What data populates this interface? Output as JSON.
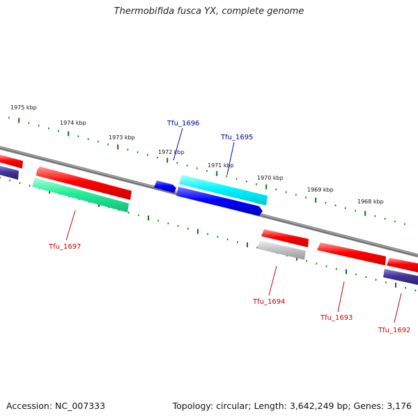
{
  "title": "Thermobifida fusca YX, complete genome",
  "footer": {
    "accession": "Accession: NC_007333",
    "summary": "Topology: circular; Length: 3,642,249 bp; Genes: 3,176"
  },
  "scale": {
    "unit": "kbp",
    "labels": [
      "1975 kbp",
      "1974 kbp",
      "1973 kbp",
      "1972 kbp",
      "1971 kbp",
      "1970 kbp",
      "1969 kbp",
      "1968 kbp"
    ]
  },
  "genes": {
    "Tfu_1696": {
      "label": "Tfu_1696",
      "color": "#0000ff",
      "label_color": "#0000aa"
    },
    "Tfu_1695": {
      "label": "Tfu_1695",
      "color": "#00e5ee",
      "label_color": "#0000aa"
    },
    "Tfu_1697": {
      "label": "Tfu_1697",
      "color": "#22ee99",
      "label_color": "#cc0000"
    },
    "Tfu_1694": {
      "label": "Tfu_1694",
      "color": "#bbbbbb",
      "label_color": "#cc0000"
    },
    "Tfu_1693": {
      "label": "Tfu_1693",
      "color": "#ee0000",
      "label_color": "#cc0000"
    },
    "Tfu_1692": {
      "label": "Tfu_1692",
      "color": "#443399",
      "label_color": "#cc0000"
    }
  },
  "colors": {
    "backbone": "#777777",
    "ticks": "#007700",
    "red_gene": "#ee0000",
    "dark_gene": "#443399"
  }
}
